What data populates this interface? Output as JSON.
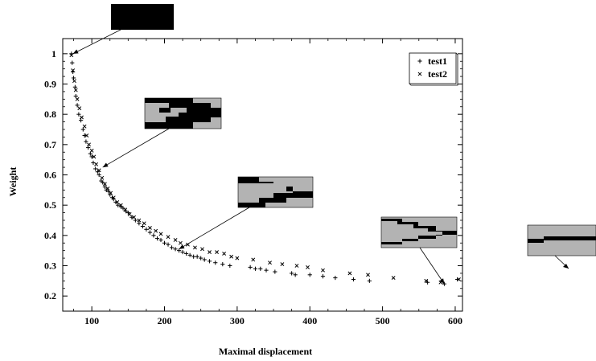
{
  "chart_data": {
    "type": "scatter",
    "title": "",
    "xlabel": "Maximal displacement",
    "ylabel": "Weight",
    "xlim": [
      60,
      610
    ],
    "ylim": [
      0.15,
      1.05
    ],
    "x_ticks": [
      100,
      200,
      300,
      400,
      500,
      600
    ],
    "y_ticks": [
      0.2,
      0.3,
      0.4,
      0.5,
      0.6,
      0.7,
      0.8,
      0.9,
      1
    ],
    "legend_position": "top-right",
    "grid": false,
    "series": [
      {
        "name": "test1",
        "marker": "plus",
        "points": [
          [
            72,
            1.0
          ],
          [
            73,
            0.97
          ],
          [
            74,
            0.94
          ],
          [
            75,
            0.92
          ],
          [
            77,
            0.89
          ],
          [
            78,
            0.86
          ],
          [
            80,
            0.83
          ],
          [
            82,
            0.8
          ],
          [
            85,
            0.78
          ],
          [
            88,
            0.75
          ],
          [
            90,
            0.73
          ],
          [
            92,
            0.71
          ],
          [
            95,
            0.69
          ],
          [
            98,
            0.67
          ],
          [
            100,
            0.66
          ],
          [
            102,
            0.64
          ],
          [
            105,
            0.62
          ],
          [
            108,
            0.61
          ],
          [
            110,
            0.6
          ],
          [
            113,
            0.58
          ],
          [
            115,
            0.575
          ],
          [
            118,
            0.56
          ],
          [
            120,
            0.55
          ],
          [
            123,
            0.545
          ],
          [
            125,
            0.535
          ],
          [
            128,
            0.525
          ],
          [
            130,
            0.52
          ],
          [
            133,
            0.51
          ],
          [
            136,
            0.5
          ],
          [
            140,
            0.495
          ],
          [
            143,
            0.49
          ],
          [
            147,
            0.48
          ],
          [
            150,
            0.475
          ],
          [
            155,
            0.46
          ],
          [
            160,
            0.45
          ],
          [
            165,
            0.44
          ],
          [
            170,
            0.43
          ],
          [
            175,
            0.42
          ],
          [
            180,
            0.41
          ],
          [
            185,
            0.4
          ],
          [
            190,
            0.39
          ],
          [
            195,
            0.385
          ],
          [
            200,
            0.375
          ],
          [
            205,
            0.37
          ],
          [
            210,
            0.36
          ],
          [
            215,
            0.355
          ],
          [
            220,
            0.35
          ],
          [
            225,
            0.345
          ],
          [
            230,
            0.34
          ],
          [
            235,
            0.335
          ],
          [
            240,
            0.33
          ],
          [
            245,
            0.33
          ],
          [
            250,
            0.325
          ],
          [
            255,
            0.32
          ],
          [
            262,
            0.315
          ],
          [
            270,
            0.31
          ],
          [
            280,
            0.305
          ],
          [
            290,
            0.3
          ],
          [
            318,
            0.295
          ],
          [
            325,
            0.29
          ],
          [
            332,
            0.29
          ],
          [
            340,
            0.285
          ],
          [
            352,
            0.28
          ],
          [
            375,
            0.275
          ],
          [
            380,
            0.27
          ],
          [
            400,
            0.27
          ],
          [
            418,
            0.265
          ],
          [
            435,
            0.26
          ],
          [
            460,
            0.255
          ],
          [
            482,
            0.25
          ],
          [
            562,
            0.245
          ],
          [
            585,
            0.24
          ],
          [
            603,
            0.255
          ]
        ]
      },
      {
        "name": "test2",
        "marker": "cross",
        "points": [
          [
            72,
            0.995
          ],
          [
            74,
            0.945
          ],
          [
            76,
            0.91
          ],
          [
            78,
            0.88
          ],
          [
            80,
            0.85
          ],
          [
            83,
            0.82
          ],
          [
            86,
            0.79
          ],
          [
            90,
            0.76
          ],
          [
            93,
            0.73
          ],
          [
            96,
            0.7
          ],
          [
            100,
            0.68
          ],
          [
            103,
            0.66
          ],
          [
            106,
            0.635
          ],
          [
            110,
            0.615
          ],
          [
            114,
            0.59
          ],
          [
            118,
            0.57
          ],
          [
            122,
            0.555
          ],
          [
            126,
            0.54
          ],
          [
            130,
            0.525
          ],
          [
            135,
            0.51
          ],
          [
            140,
            0.5
          ],
          [
            146,
            0.485
          ],
          [
            152,
            0.47
          ],
          [
            158,
            0.46
          ],
          [
            165,
            0.45
          ],
          [
            172,
            0.44
          ],
          [
            180,
            0.425
          ],
          [
            188,
            0.415
          ],
          [
            195,
            0.405
          ],
          [
            205,
            0.395
          ],
          [
            215,
            0.385
          ],
          [
            222,
            0.375
          ],
          [
            232,
            0.37
          ],
          [
            242,
            0.36
          ],
          [
            252,
            0.355
          ],
          [
            262,
            0.345
          ],
          [
            272,
            0.345
          ],
          [
            282,
            0.34
          ],
          [
            292,
            0.33
          ],
          [
            300,
            0.325
          ],
          [
            322,
            0.32
          ],
          [
            345,
            0.31
          ],
          [
            362,
            0.305
          ],
          [
            382,
            0.3
          ],
          [
            397,
            0.295
          ],
          [
            418,
            0.285
          ],
          [
            455,
            0.275
          ],
          [
            480,
            0.27
          ],
          [
            515,
            0.26
          ],
          [
            560,
            0.25
          ],
          [
            580,
            0.245
          ],
          [
            605,
            0.255
          ]
        ]
      }
    ],
    "annotations": [
      {
        "name": "inset-1",
        "target": [
          74,
          1.0
        ]
      },
      {
        "name": "inset-2",
        "target": [
          115,
          0.625
        ]
      },
      {
        "name": "inset-3",
        "target": [
          220,
          0.355
        ]
      },
      {
        "name": "inset-4",
        "target": [
          585,
          0.24
        ]
      },
      {
        "name": "inset-5",
        "target": null
      }
    ]
  }
}
